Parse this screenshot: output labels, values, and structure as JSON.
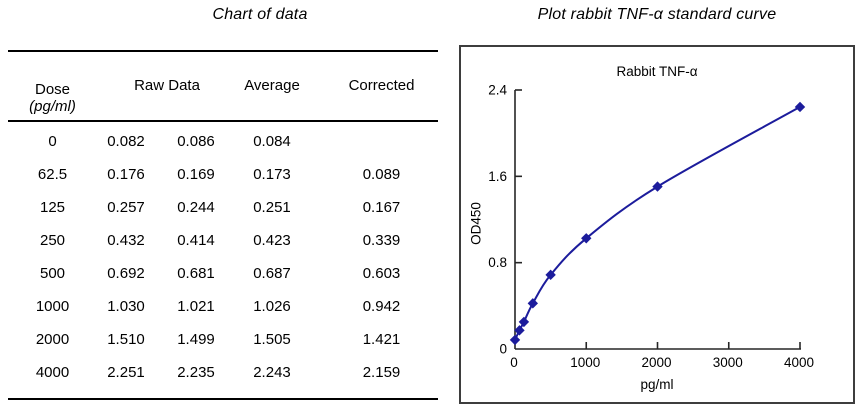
{
  "left_panel": {
    "title": "Chart of data",
    "table": {
      "headers": {
        "dose": "Dose",
        "dose_unit": "(pg/ml)",
        "raw": "Raw Data",
        "average": "Average",
        "corrected": "Corrected"
      },
      "rows": [
        {
          "dose": "0",
          "raw1": "0.082",
          "raw2": "0.086",
          "average": "0.084",
          "corrected": ""
        },
        {
          "dose": "62.5",
          "raw1": "0.176",
          "raw2": "0.169",
          "average": "0.173",
          "corrected": "0.089"
        },
        {
          "dose": "125",
          "raw1": "0.257",
          "raw2": "0.244",
          "average": "0.251",
          "corrected": "0.167"
        },
        {
          "dose": "250",
          "raw1": "0.432",
          "raw2": "0.414",
          "average": "0.423",
          "corrected": "0.339"
        },
        {
          "dose": "500",
          "raw1": "0.692",
          "raw2": "0.681",
          "average": "0.687",
          "corrected": "0.603"
        },
        {
          "dose": "1000",
          "raw1": "1.030",
          "raw2": "1.021",
          "average": "1.026",
          "corrected": "0.942"
        },
        {
          "dose": "2000",
          "raw1": "1.510",
          "raw2": "1.499",
          "average": "1.505",
          "corrected": "1.421"
        },
        {
          "dose": "4000",
          "raw1": "2.251",
          "raw2": "2.235",
          "average": "2.243",
          "corrected": "2.159"
        }
      ]
    }
  },
  "right_panel": {
    "title": "Plot rabbit TNF-α standard curve"
  },
  "chart_data": {
    "type": "line",
    "title": "Rabbit TNF-α",
    "xlabel": "pg/ml",
    "ylabel": "OD450",
    "x": [
      0,
      62.5,
      125,
      250,
      500,
      1000,
      2000,
      4000
    ],
    "series": [
      {
        "name": "Rabbit TNF-α average OD450",
        "values": [
          0.084,
          0.173,
          0.251,
          0.423,
          0.687,
          1.026,
          1.505,
          2.243
        ]
      }
    ],
    "xlim": [
      0,
      4000
    ],
    "ylim": [
      0,
      2.4
    ],
    "x_ticks": [
      0,
      1000,
      2000,
      3000,
      4000
    ],
    "y_ticks": [
      0,
      0.8,
      1.6,
      2.4
    ],
    "line_color": "#1c1c9c",
    "axis_color": "#262626",
    "marker": "diamond",
    "grid": false,
    "legend": false
  }
}
